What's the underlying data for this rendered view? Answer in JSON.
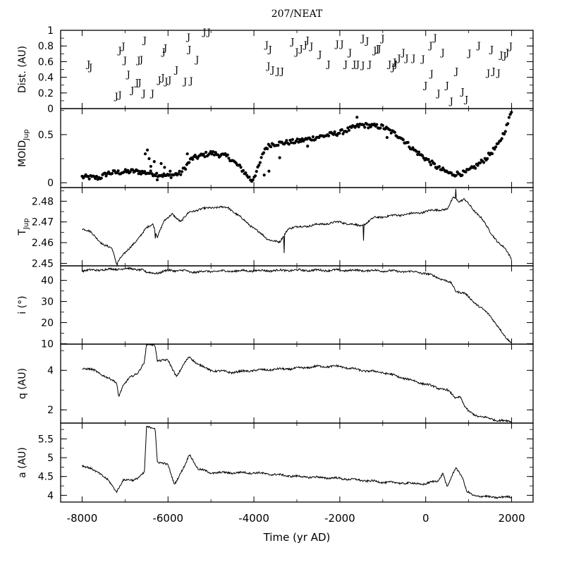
{
  "chart_data": {
    "type": "line",
    "title": "207/NEAT",
    "xlabel": "Time (yr AD)",
    "xlim": [
      -8500,
      2500
    ],
    "xticks": [
      -8000,
      -6000,
      -4000,
      -2000,
      0,
      2000
    ],
    "colors": {
      "stroke": "#000000",
      "background": "#ffffff"
    },
    "panels": [
      {
        "id": "dist",
        "ylabel": "Dist. (AU)",
        "ylim": [
          0,
          1
        ],
        "yticks": [
          0,
          0.2,
          0.4,
          0.6,
          0.8,
          1
        ],
        "ytick_labels": [
          "0",
          "0.2",
          "0.4",
          "0.6",
          "0.8",
          "1"
        ],
        "marker": "J",
        "points": [
          [
            -7850,
            0.57
          ],
          [
            -7800,
            0.53
          ],
          [
            -7200,
            0.16
          ],
          [
            -7120,
            0.18
          ],
          [
            -7120,
            0.75
          ],
          [
            -7040,
            0.8
          ],
          [
            -7000,
            0.62
          ],
          [
            -6920,
            0.44
          ],
          [
            -6830,
            0.24
          ],
          [
            -6720,
            0.34
          ],
          [
            -6660,
            0.34
          ],
          [
            -6680,
            0.62
          ],
          [
            -6620,
            0.63
          ],
          [
            -6560,
            0.2
          ],
          [
            -6540,
            0.88
          ],
          [
            -6360,
            0.2
          ],
          [
            -6200,
            0.37
          ],
          [
            -6120,
            0.4
          ],
          [
            -6100,
            0.73
          ],
          [
            -6060,
            0.78
          ],
          [
            -6040,
            0.35
          ],
          [
            -5960,
            0.37
          ],
          [
            -5800,
            0.5
          ],
          [
            -5600,
            0.35
          ],
          [
            -5520,
            0.92
          ],
          [
            -5500,
            0.76
          ],
          [
            -5460,
            0.36
          ],
          [
            -5320,
            0.63
          ],
          [
            -5150,
            0.98
          ],
          [
            -5050,
            0.98
          ],
          [
            -3700,
            0.82
          ],
          [
            -3660,
            0.55
          ],
          [
            -3620,
            0.76
          ],
          [
            -3560,
            0.5
          ],
          [
            -3440,
            0.48
          ],
          [
            -3340,
            0.48
          ],
          [
            -3100,
            0.86
          ],
          [
            -3000,
            0.73
          ],
          [
            -2900,
            0.77
          ],
          [
            -2800,
            0.82
          ],
          [
            -2750,
            0.88
          ],
          [
            -2660,
            0.8
          ],
          [
            -2460,
            0.7
          ],
          [
            -2260,
            0.57
          ],
          [
            -2060,
            0.83
          ],
          [
            -1950,
            0.83
          ],
          [
            -1860,
            0.57
          ],
          [
            -1760,
            0.72
          ],
          [
            -1660,
            0.57
          ],
          [
            -1580,
            0.57
          ],
          [
            -1460,
            0.56
          ],
          [
            -1460,
            0.9
          ],
          [
            -1360,
            0.87
          ],
          [
            -1300,
            0.57
          ],
          [
            -1180,
            0.75
          ],
          [
            -1120,
            0.77
          ],
          [
            -1080,
            0.77
          ],
          [
            -1000,
            0.9
          ],
          [
            -840,
            0.57
          ],
          [
            -760,
            0.53
          ],
          [
            -720,
            0.6
          ],
          [
            -700,
            0.57
          ],
          [
            -620,
            0.65
          ],
          [
            -520,
            0.72
          ],
          [
            -440,
            0.65
          ],
          [
            -280,
            0.65
          ],
          [
            -60,
            0.64
          ],
          [
            0,
            0.3
          ],
          [
            120,
            0.81
          ],
          [
            140,
            0.45
          ],
          [
            220,
            0.91
          ],
          [
            300,
            0.2
          ],
          [
            400,
            0.72
          ],
          [
            500,
            0.3
          ],
          [
            600,
            0.1
          ],
          [
            720,
            0.48
          ],
          [
            860,
            0.22
          ],
          [
            950,
            0.12
          ],
          [
            1020,
            0.71
          ],
          [
            1240,
            0.81
          ],
          [
            1460,
            0.46
          ],
          [
            1540,
            0.76
          ],
          [
            1580,
            0.48
          ],
          [
            1700,
            0.46
          ],
          [
            1760,
            0.69
          ],
          [
            1840,
            0.68
          ],
          [
            1900,
            0.72
          ],
          [
            1980,
            0.8
          ]
        ]
      },
      {
        "id": "moid",
        "ylabel": "MOID",
        "ylabel_sub": "Jup",
        "ylim": [
          -0.05,
          0.77
        ],
        "yticks": [
          0,
          0.5
        ],
        "ytick_labels": [
          "0",
          "0.5"
        ],
        "marker": "dot",
        "knots": [
          [
            -8000,
            0.06
          ],
          [
            -7600,
            0.05
          ],
          [
            -7400,
            0.1
          ],
          [
            -6800,
            0.12
          ],
          [
            -6400,
            0.1
          ],
          [
            -6000,
            0.07
          ],
          [
            -5700,
            0.1
          ],
          [
            -5450,
            0.25
          ],
          [
            -5000,
            0.31
          ],
          [
            -4600,
            0.27
          ],
          [
            -4300,
            0.15
          ],
          [
            -4050,
            0.02
          ],
          [
            -3900,
            0.15
          ],
          [
            -3750,
            0.35
          ],
          [
            -3600,
            0.4
          ],
          [
            -3000,
            0.43
          ],
          [
            -2000,
            0.52
          ],
          [
            -1500,
            0.6
          ],
          [
            -1000,
            0.58
          ],
          [
            -600,
            0.48
          ],
          [
            -300,
            0.35
          ],
          [
            0,
            0.25
          ],
          [
            300,
            0.15
          ],
          [
            600,
            0.09
          ],
          [
            900,
            0.1
          ],
          [
            1100,
            0.15
          ],
          [
            1400,
            0.25
          ],
          [
            1700,
            0.4
          ],
          [
            1900,
            0.6
          ],
          [
            2000,
            0.75
          ]
        ],
        "outliers": [
          [
            -6530,
            0.3
          ],
          [
            -6480,
            0.34
          ],
          [
            -6440,
            0.25
          ],
          [
            -6400,
            0.17
          ],
          [
            -6320,
            0.22
          ],
          [
            -6250,
            0.03
          ],
          [
            -6160,
            0.2
          ],
          [
            -6080,
            0.16
          ],
          [
            -5950,
            0.12
          ],
          [
            -5550,
            0.3
          ],
          [
            -3760,
            0.08
          ],
          [
            -3650,
            0.12
          ],
          [
            -3400,
            0.26
          ],
          [
            -2750,
            0.38
          ],
          [
            -1600,
            0.68
          ],
          [
            -900,
            0.47
          ]
        ]
      },
      {
        "id": "tjup",
        "ylabel": "T",
        "ylabel_sub": "Jup",
        "ylim": [
          2.4488,
          2.4866
        ],
        "yticks": [
          2.45,
          2.46,
          2.47,
          2.48
        ],
        "ytick_labels": [
          "2.45",
          "2.46",
          "2.47",
          "2.48"
        ],
        "marker": "line",
        "knots": [
          [
            -8000,
            2.467
          ],
          [
            -7800,
            2.465
          ],
          [
            -7500,
            2.459
          ],
          [
            -7300,
            2.457
          ],
          [
            -7200,
            2.45
          ],
          [
            -7100,
            2.453
          ],
          [
            -6900,
            2.457
          ],
          [
            -6700,
            2.462
          ],
          [
            -6500,
            2.467
          ],
          [
            -6350,
            2.469
          ],
          [
            -6250,
            2.463
          ],
          [
            -6100,
            2.47
          ],
          [
            -5900,
            2.474
          ],
          [
            -5700,
            2.47
          ],
          [
            -5500,
            2.475
          ],
          [
            -5000,
            2.477
          ],
          [
            -4600,
            2.477
          ],
          [
            -4300,
            2.472
          ],
          [
            -4000,
            2.467
          ],
          [
            -3700,
            2.462
          ],
          [
            -3400,
            2.46
          ],
          [
            -3200,
            2.467
          ],
          [
            -2800,
            2.468
          ],
          [
            -2000,
            2.47
          ],
          [
            -1500,
            2.468
          ],
          [
            -1200,
            2.472
          ],
          [
            -800,
            2.473
          ],
          [
            -300,
            2.474
          ],
          [
            0,
            2.475
          ],
          [
            300,
            2.476
          ],
          [
            500,
            2.476
          ],
          [
            650,
            2.482
          ],
          [
            780,
            2.48
          ],
          [
            900,
            2.481
          ],
          [
            1100,
            2.476
          ],
          [
            1300,
            2.472
          ],
          [
            1500,
            2.465
          ],
          [
            1700,
            2.46
          ],
          [
            1850,
            2.457
          ],
          [
            2000,
            2.452
          ]
        ],
        "spikes": [
          [
            -7180,
            2.449
          ],
          [
            -6300,
            2.462
          ],
          [
            -3300,
            2.455
          ],
          [
            -1450,
            2.461
          ],
          [
            700,
            2.486
          ]
        ]
      },
      {
        "id": "incl",
        "ylabel": "i (°)",
        "ylim": [
          9.8,
          46.9
        ],
        "yticks": [
          10,
          20,
          30,
          40
        ],
        "ytick_labels": [
          "10",
          "20",
          "30",
          "40"
        ],
        "marker": "line",
        "knots": [
          [
            -8000,
            44.6
          ],
          [
            -7500,
            45.1
          ],
          [
            -7000,
            45.6
          ],
          [
            -6600,
            45.1
          ],
          [
            -6500,
            43.6
          ],
          [
            -6200,
            43.6
          ],
          [
            -6000,
            44.8
          ],
          [
            -5600,
            44.6
          ],
          [
            -5500,
            43.9
          ],
          [
            -5000,
            44.3
          ],
          [
            -4000,
            44.6
          ],
          [
            -3000,
            44.8
          ],
          [
            -2000,
            44.8
          ],
          [
            -1000,
            44.6
          ],
          [
            -500,
            44.2
          ],
          [
            -200,
            44.0
          ],
          [
            0,
            43.2
          ],
          [
            200,
            42.0
          ],
          [
            400,
            40.5
          ],
          [
            600,
            38.5
          ],
          [
            700,
            35.0
          ],
          [
            900,
            34.0
          ],
          [
            1100,
            30.0
          ],
          [
            1300,
            27.0
          ],
          [
            1500,
            23.0
          ],
          [
            1700,
            18.0
          ],
          [
            1850,
            13.0
          ],
          [
            1950,
            11.0
          ],
          [
            2000,
            10.8
          ]
        ]
      },
      {
        "id": "q",
        "ylabel": "q (AU)",
        "ylim": [
          1.33,
          5.33
        ],
        "yticks": [
          2,
          4
        ],
        "ytick_labels": [
          "2",
          "4"
        ],
        "marker": "line",
        "knots": [
          [
            -8000,
            4.1
          ],
          [
            -7700,
            4.0
          ],
          [
            -7400,
            3.6
          ],
          [
            -7200,
            3.4
          ],
          [
            -7150,
            2.7
          ],
          [
            -7050,
            3.2
          ],
          [
            -6900,
            3.6
          ],
          [
            -6700,
            3.9
          ],
          [
            -6550,
            4.4
          ],
          [
            -6500,
            5.3
          ],
          [
            -6300,
            5.3
          ],
          [
            -6250,
            4.5
          ],
          [
            -6000,
            4.5
          ],
          [
            -5800,
            3.7
          ],
          [
            -5600,
            4.4
          ],
          [
            -5500,
            4.7
          ],
          [
            -5300,
            4.3
          ],
          [
            -5000,
            4.0
          ],
          [
            -4500,
            3.9
          ],
          [
            -4000,
            4.0
          ],
          [
            -3000,
            4.1
          ],
          [
            -2500,
            4.2
          ],
          [
            -2000,
            4.2
          ],
          [
            -1500,
            4.0
          ],
          [
            -1000,
            3.9
          ],
          [
            -500,
            3.6
          ],
          [
            0,
            3.3
          ],
          [
            300,
            3.1
          ],
          [
            500,
            3.0
          ],
          [
            700,
            2.6
          ],
          [
            800,
            2.7
          ],
          [
            900,
            2.2
          ],
          [
            1000,
            1.9
          ],
          [
            1200,
            1.7
          ],
          [
            1400,
            1.6
          ],
          [
            1600,
            1.5
          ],
          [
            1800,
            1.45
          ],
          [
            2000,
            1.4
          ]
        ]
      },
      {
        "id": "a",
        "ylabel": "a (AU)",
        "ylim": [
          3.82,
          5.92
        ],
        "yticks": [
          4,
          4.5,
          5,
          5.5
        ],
        "ytick_labels": [
          "4",
          "4.5",
          "5",
          "5.5"
        ],
        "marker": "line",
        "knots": [
          [
            -8000,
            4.8
          ],
          [
            -7600,
            4.6
          ],
          [
            -7400,
            4.4
          ],
          [
            -7200,
            4.1
          ],
          [
            -7050,
            4.4
          ],
          [
            -6800,
            4.4
          ],
          [
            -6550,
            4.6
          ],
          [
            -6500,
            5.8
          ],
          [
            -6300,
            5.8
          ],
          [
            -6250,
            4.9
          ],
          [
            -6000,
            4.8
          ],
          [
            -5850,
            4.3
          ],
          [
            -5600,
            4.8
          ],
          [
            -5500,
            5.1
          ],
          [
            -5300,
            4.7
          ],
          [
            -5000,
            4.6
          ],
          [
            -4000,
            4.6
          ],
          [
            -3000,
            4.5
          ],
          [
            -2000,
            4.45
          ],
          [
            -1000,
            4.35
          ],
          [
            0,
            4.3
          ],
          [
            300,
            4.4
          ],
          [
            400,
            4.6
          ],
          [
            500,
            4.2
          ],
          [
            700,
            4.75
          ],
          [
            850,
            4.5
          ],
          [
            950,
            4.1
          ],
          [
            1100,
            4.0
          ],
          [
            1500,
            3.95
          ],
          [
            2000,
            3.95
          ]
        ]
      }
    ]
  }
}
